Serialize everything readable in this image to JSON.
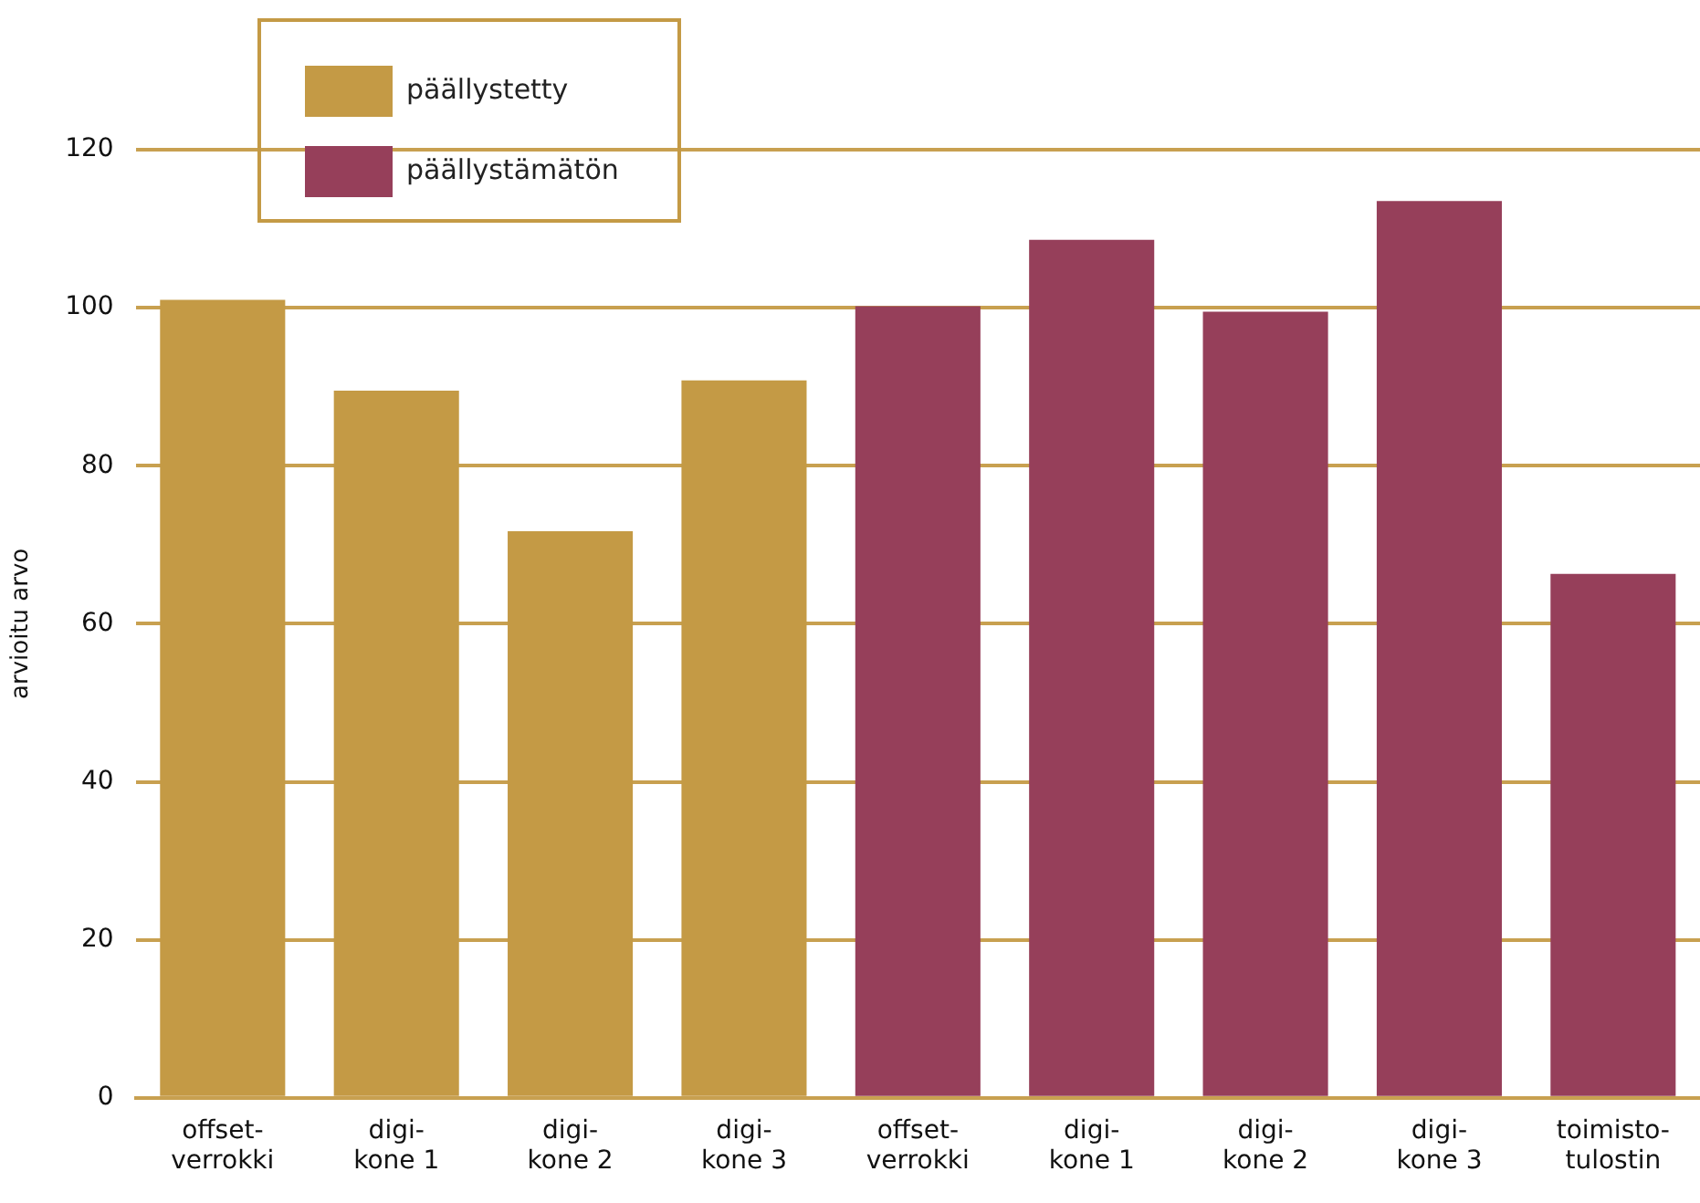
{
  "chart_data": {
    "type": "bar",
    "ylabel": "arvioitu arvo",
    "categories": [
      "offset-\nverrokki",
      "digi-\nkone 1",
      "digi-\nkone 2",
      "digi-\nkone 3",
      "offset-\nverrokki",
      "digi-\nkone 1",
      "digi-\nkone 2",
      "digi-\nkone 3",
      "toimisto-\ntulostin"
    ],
    "series": [
      {
        "name": "päällystetty",
        "color": "#c49a45",
        "values": [
          101,
          89.5,
          71.7,
          90.8,
          null,
          null,
          null,
          null,
          null
        ]
      },
      {
        "name": "päällystämätön",
        "color": "#963f5a",
        "values": [
          null,
          null,
          null,
          null,
          100.2,
          108.6,
          99.5,
          113.5,
          66.3
        ]
      }
    ],
    "ylim": [
      0,
      120
    ],
    "yticks": [
      0,
      20,
      40,
      60,
      80,
      100,
      120
    ],
    "grid": "y",
    "legend": "top left"
  }
}
